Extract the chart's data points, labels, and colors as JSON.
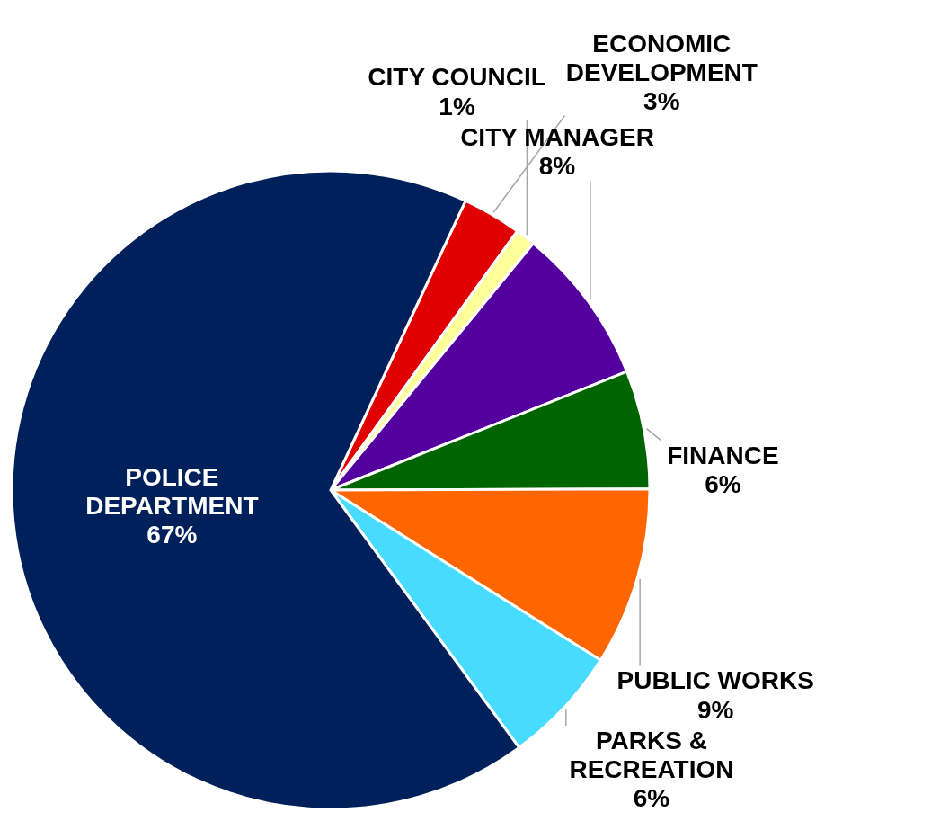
{
  "chart_data": {
    "type": "pie",
    "categories": [
      "ECONOMIC DEVELOPMENT",
      "CITY COUNCIL",
      "CITY MANAGER",
      "FINANCE",
      "PUBLIC WORKS",
      "PARKS & RECREATION",
      "POLICE DEPARTMENT"
    ],
    "values": [
      3,
      1,
      8,
      6,
      9,
      6,
      67
    ],
    "colors": [
      "#e00000",
      "#ffff99",
      "#54009e",
      "#006400",
      "#ff6600",
      "#47dbff",
      "#00205b"
    ],
    "value_labels": [
      "3%",
      "1%",
      "8%",
      "6%",
      "9%",
      "6%",
      "67%"
    ]
  }
}
